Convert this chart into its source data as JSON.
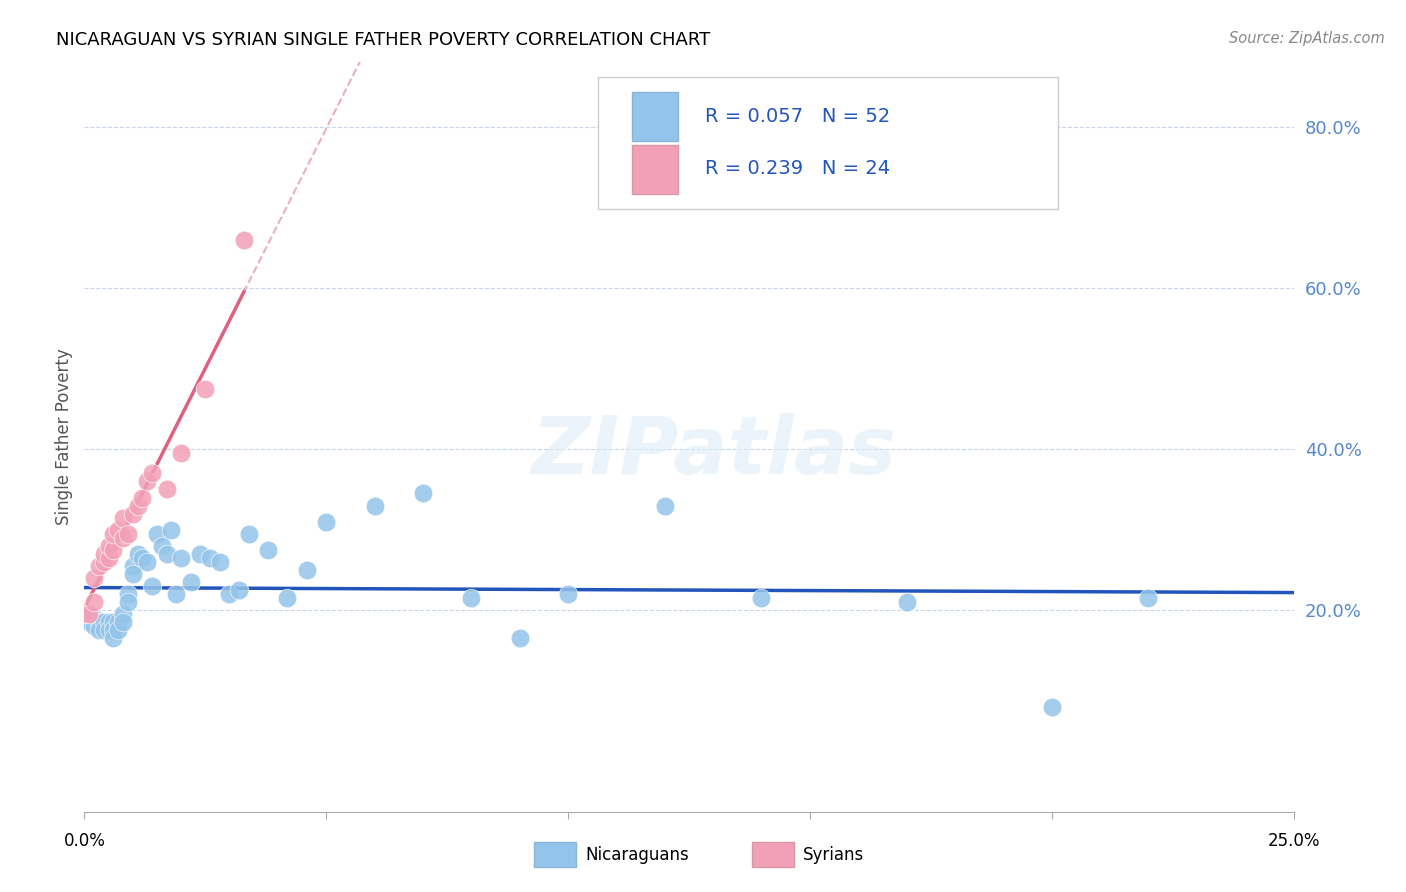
{
  "title": "NICARAGUAN VS SYRIAN SINGLE FATHER POVERTY CORRELATION CHART",
  "source": "Source: ZipAtlas.com",
  "ylabel": "Single Father Poverty",
  "ytick_vals": [
    0.2,
    0.4,
    0.6,
    0.8
  ],
  "ytick_labels": [
    "20.0%",
    "40.0%",
    "60.0%",
    "80.0%"
  ],
  "xlim": [
    0.0,
    0.25
  ],
  "ylim": [
    -0.05,
    0.88
  ],
  "watermark": "ZIPatlas",
  "nic_color": "#94c4ea",
  "syr_color": "#f2a0b8",
  "nic_line_color": "#2255bb",
  "syr_line_color": "#e06080",
  "dash_line_color": "#e090a0",
  "nicaraguan_x": [
    0.0,
    0.001,
    0.002,
    0.002,
    0.003,
    0.003,
    0.004,
    0.004,
    0.005,
    0.005,
    0.006,
    0.006,
    0.006,
    0.007,
    0.007,
    0.008,
    0.008,
    0.009,
    0.009,
    0.01,
    0.01,
    0.011,
    0.012,
    0.013,
    0.014,
    0.015,
    0.016,
    0.017,
    0.018,
    0.019,
    0.02,
    0.022,
    0.024,
    0.026,
    0.028,
    0.03,
    0.032,
    0.034,
    0.038,
    0.042,
    0.046,
    0.05,
    0.06,
    0.07,
    0.08,
    0.09,
    0.1,
    0.12,
    0.14,
    0.17,
    0.2,
    0.22
  ],
  "nicaraguan_y": [
    0.19,
    0.185,
    0.19,
    0.18,
    0.185,
    0.175,
    0.185,
    0.175,
    0.185,
    0.175,
    0.185,
    0.175,
    0.165,
    0.185,
    0.175,
    0.195,
    0.185,
    0.22,
    0.21,
    0.255,
    0.245,
    0.27,
    0.265,
    0.26,
    0.23,
    0.295,
    0.28,
    0.27,
    0.3,
    0.22,
    0.265,
    0.235,
    0.27,
    0.265,
    0.26,
    0.22,
    0.225,
    0.295,
    0.275,
    0.215,
    0.25,
    0.31,
    0.33,
    0.345,
    0.215,
    0.165,
    0.22,
    0.33,
    0.215,
    0.21,
    0.08,
    0.215
  ],
  "syrian_x": [
    0.0,
    0.001,
    0.002,
    0.002,
    0.003,
    0.004,
    0.004,
    0.005,
    0.005,
    0.006,
    0.006,
    0.007,
    0.008,
    0.008,
    0.009,
    0.01,
    0.011,
    0.012,
    0.013,
    0.014,
    0.017,
    0.02,
    0.025,
    0.033
  ],
  "syrian_y": [
    0.195,
    0.195,
    0.21,
    0.24,
    0.255,
    0.26,
    0.27,
    0.265,
    0.28,
    0.275,
    0.295,
    0.3,
    0.29,
    0.315,
    0.295,
    0.32,
    0.33,
    0.34,
    0.36,
    0.37,
    0.35,
    0.395,
    0.475,
    0.66
  ]
}
